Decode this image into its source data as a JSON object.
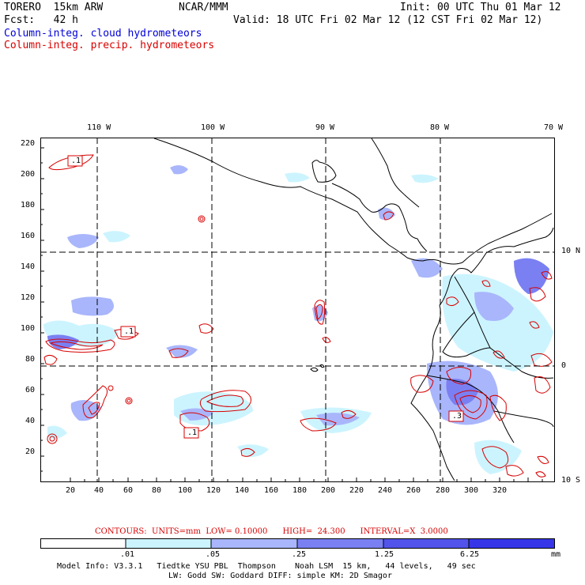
{
  "header": {
    "model": "TORERO  15km ARW",
    "org": "NCAR/MMM",
    "init": "Init: 00 UTC Thu 01 Mar 12",
    "fcst": "Fcst:   42 h",
    "valid": "Valid: 18 UTC Fri 02 Mar 12 (12 CST Fri 02 Mar 12)",
    "legend_cloud": "Column-integ. cloud hydrometeors",
    "legend_precip": "Column-integ. precip. hydrometeors"
  },
  "axes": {
    "lon_labels": [
      "110 W",
      "100 W",
      "90 W",
      "80 W",
      "70 W"
    ],
    "lat_labels": [
      "10 N",
      "0",
      "10 S"
    ],
    "x_ticks": [
      "20",
      "40",
      "60",
      "80",
      "100",
      "120",
      "140",
      "160",
      "180",
      "200",
      "220",
      "240",
      "260",
      "280",
      "300",
      "320"
    ],
    "y_ticks": [
      "220",
      "200",
      "180",
      "160",
      "140",
      "120",
      "100",
      "80",
      "60",
      "40",
      "20"
    ]
  },
  "field_labels": [
    ".1",
    ".1",
    ".1",
    ".3"
  ],
  "contour_info": {
    "text": "CONTOURS:  UNITS=mm  LOW= 0.10000      HIGH=  24.300      INTERVAL=X  3.0000"
  },
  "colorbar": {
    "unit": "mm",
    "levels": [
      ".01",
      ".05",
      ".25",
      "1.25",
      "6.25"
    ],
    "colors": [
      "#ffffff",
      "#ccf4ff",
      "#a9b6fb",
      "#7a80f2",
      "#5253ea",
      "#3636e8"
    ]
  },
  "footer": {
    "line1": "Model Info: V3.3.1   Tiedtke YSU PBL  Thompson    Noah LSM  15 km,   44 levels,   49 sec",
    "line2": "LW: Godd SW: Goddard DIFF: simple KM: 2D Smagor"
  }
}
